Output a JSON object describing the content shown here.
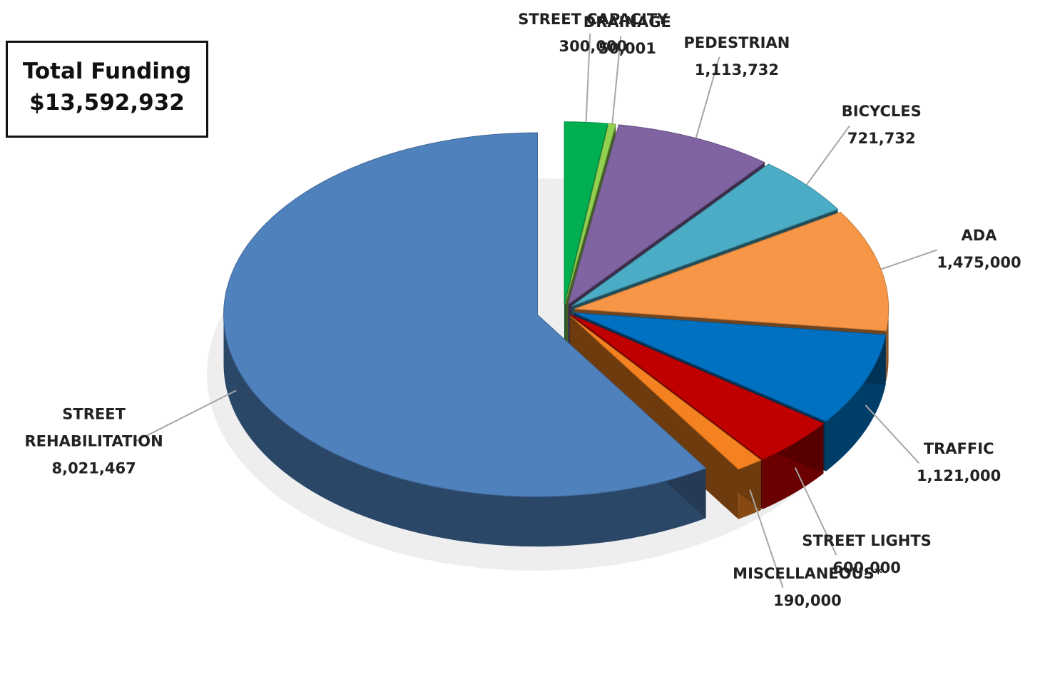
{
  "chart_data": {
    "type": "pie",
    "annotations": [
      "Total Funding",
      "$13,592,932"
    ],
    "categories": [
      "STREET CAPACITY",
      "DRAINAGE",
      "PEDESTRIAN",
      "BICYCLES",
      "ADA",
      "TRAFFIC",
      "STREET LIGHTS",
      "MISCELLANEOUS*",
      "STREET REHABILITATION"
    ],
    "values": [
      300000,
      50001,
      1113732,
      721732,
      1475000,
      1121000,
      600000,
      190000,
      8021467
    ],
    "value_labels": [
      "300,000",
      "50,001",
      "1,113,732",
      "721,732",
      "1,475,000",
      "1,121,000",
      "600,000",
      "190,000",
      "8,021,467"
    ],
    "colors": [
      "#00b050",
      "#92d050",
      "#8064a2",
      "#4bacc6",
      "#f79646",
      "#0070c0",
      "#c00000",
      "#f58220",
      "#4f81bd"
    ]
  }
}
